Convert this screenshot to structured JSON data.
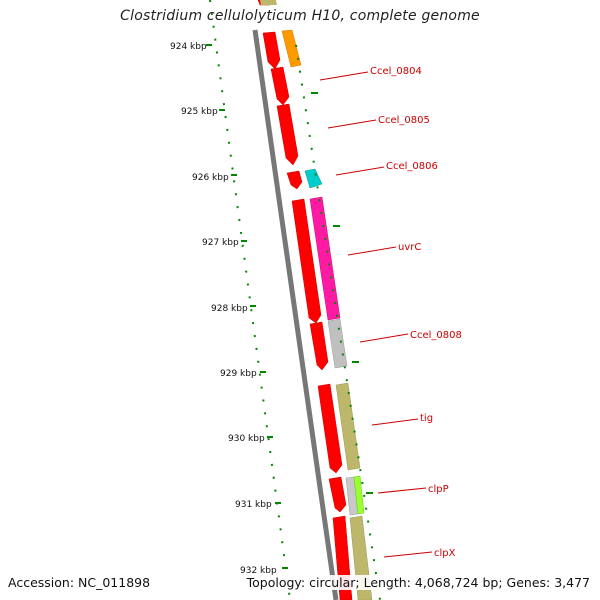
{
  "title": "Clostridium cellulolyticum H10, complete genome",
  "footer": {
    "accession": "Accession: NC_011898",
    "summary": "Topology: circular; Length: 4,068,724 bp; Genes: 3,477"
  },
  "kbp_labels": [
    "924 kbp",
    "925 kbp",
    "926 kbp",
    "927 kbp",
    "928 kbp",
    "929 kbp",
    "930 kbp",
    "931 kbp",
    "932 kbp"
  ],
  "gene_labels": [
    "Ccel_0804",
    "Ccel_0805",
    "Ccel_0806",
    "uvrC",
    "Ccel_0808",
    "tig",
    "clpP",
    "clpX"
  ],
  "colors": {
    "cds": "#ff0000",
    "skew_green": "#008800",
    "backbone": "#777777",
    "label": "#cc0000",
    "orange": "#ff9900",
    "cyan": "#00cccc",
    "magenta": "#ff1aa3",
    "grey": "#c0c0c0",
    "khaki": "#bdb76b",
    "lime": "#99ff33"
  }
}
